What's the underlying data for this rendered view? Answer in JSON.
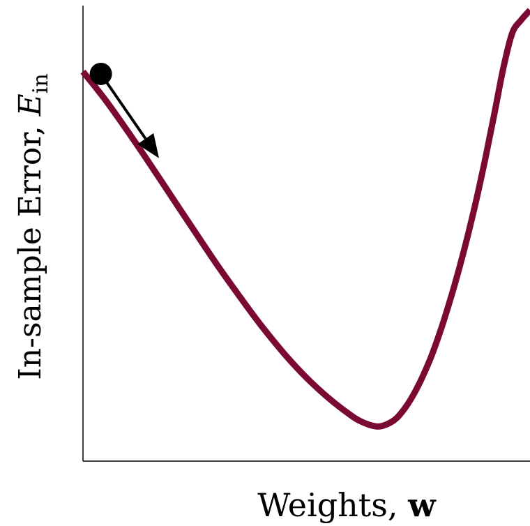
{
  "colors": {
    "curve": "#7a0a33",
    "axis": "#000000",
    "marker": "#000000"
  },
  "chart_data": {
    "type": "line",
    "title": "",
    "xlabel_text": "Weights, ",
    "xlabel_bold": "w",
    "ylabel_text": "In-sample Error, ",
    "ylabel_symbol": "E",
    "ylabel_subscript": "in",
    "x_ticks": [],
    "y_ticks": [],
    "grid": false,
    "xlim": [
      0,
      1
    ],
    "ylim": [
      0,
      1
    ],
    "series": [
      {
        "x": [
          0.0,
          0.05,
          0.1,
          0.15,
          0.2,
          0.25,
          0.3,
          0.35,
          0.4,
          0.45,
          0.5,
          0.55,
          0.6,
          0.62,
          0.64,
          0.66,
          0.68,
          0.7,
          0.72,
          0.74,
          0.76,
          0.78,
          0.8,
          0.82,
          0.84,
          0.86,
          0.88,
          0.9,
          0.92,
          0.94,
          0.96,
          0.98,
          1.0
        ],
        "y": [
          0.855,
          0.793,
          0.724,
          0.652,
          0.578,
          0.504,
          0.431,
          0.362,
          0.296,
          0.236,
          0.183,
          0.138,
          0.1,
          0.088,
          0.08,
          0.076,
          0.081,
          0.093,
          0.116,
          0.147,
          0.186,
          0.232,
          0.287,
          0.349,
          0.417,
          0.492,
          0.574,
          0.664,
          0.761,
          0.861,
          0.939,
          0.968,
          0.99
        ]
      }
    ],
    "marker": {
      "x": 0.04,
      "y": 0.85
    },
    "arrow": {
      "from": [
        0.04,
        0.85
      ],
      "to": [
        0.17,
        0.665
      ]
    }
  }
}
